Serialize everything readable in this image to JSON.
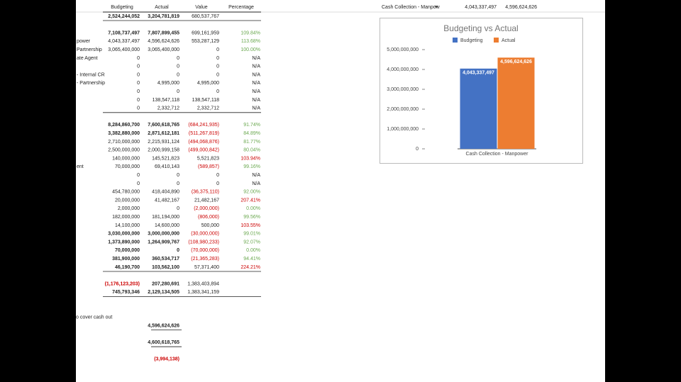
{
  "header": {
    "columns": [
      "Budgeting",
      "Actual",
      "Value",
      "Percentage"
    ]
  },
  "rows": [
    {
      "cells": [
        "2,524,244,052",
        "3,204,781,819",
        "680,537,767",
        null
      ],
      "bold": true
    },
    {
      "cells": [
        "7,108,737,497",
        "7,807,899,455",
        "699,161,959",
        "109.84%"
      ],
      "bold": true,
      "percent_color": "#6aa84f"
    },
    {
      "label": "power",
      "cells": [
        "4,043,337,497",
        "4,596,624,626",
        "553,287,129",
        "113.68%"
      ],
      "percent_color": "#6aa84f"
    },
    {
      "label": "Partnership",
      "cells": [
        "3,065,400,000",
        "3,065,400,000",
        "0",
        "100.00%"
      ],
      "percent_color": "#6aa84f"
    },
    {
      "label": "ate Agent",
      "cells": [
        "0",
        "0",
        "0",
        "N/A"
      ]
    },
    {
      "cells": [
        "0",
        "0",
        "0",
        "N/A"
      ]
    },
    {
      "label": "- Internal CR",
      "cells": [
        "0",
        "0",
        "0",
        "N/A"
      ]
    },
    {
      "label": "- Partnership",
      "cells": [
        "0",
        "4,995,000",
        "4,995,000",
        "N/A"
      ]
    },
    {
      "cells": [
        "0",
        "0",
        "0",
        "N/A"
      ]
    },
    {
      "cells": [
        "0",
        "138,547,118",
        "138,547,118",
        "N/A"
      ]
    },
    {
      "cells": [
        "0",
        "2,332,712",
        "2,332,712",
        "N/A"
      ]
    },
    {
      "cells": [
        "8,284,860,700",
        "7,600,618,765",
        "(684,241,935)",
        "91.74%"
      ],
      "bold": true,
      "percent_color": "#6aa84f"
    },
    {
      "cells": [
        "3,382,880,000",
        "2,871,612,181",
        "(511,267,819)",
        "84.89%"
      ],
      "bold": true,
      "percent_color": "#6aa84f"
    },
    {
      "cells": [
        "2,710,000,000",
        "2,215,931,124",
        "(494,068,876)",
        "81.77%"
      ],
      "percent_color": "#6aa84f"
    },
    {
      "cells": [
        "2,500,000,000",
        "2,000,999,158",
        "(499,000,842)",
        "80.04%"
      ],
      "percent_color": "#6aa84f"
    },
    {
      "cells": [
        "140,000,000",
        "145,521,823",
        "5,521,823",
        "103.94%"
      ],
      "percent_color": "#cc0000"
    },
    {
      "label": "ent",
      "cells": [
        "70,000,000",
        "69,410,143",
        "(589,857)",
        "99.16%"
      ],
      "percent_color": "#6aa84f"
    },
    {
      "cells": [
        "0",
        "0",
        "0",
        "N/A"
      ]
    },
    {
      "cells": [
        "0",
        "0",
        "0",
        "N/A"
      ]
    },
    {
      "cells": [
        "454,780,000",
        "418,404,890",
        "(36,375,110)",
        "92.00%"
      ],
      "percent_color": "#6aa84f"
    },
    {
      "cells": [
        "20,000,000",
        "41,482,167",
        "21,482,167",
        "207.41%"
      ],
      "percent_color": "#cc0000"
    },
    {
      "cells": [
        "2,000,000",
        "0",
        "(2,000,000)",
        "0.00%"
      ],
      "percent_color": "#6aa84f"
    },
    {
      "cells": [
        "182,000,000",
        "181,194,000",
        "(806,000)",
        "99.56%"
      ],
      "percent_color": "#6aa84f"
    },
    {
      "cells": [
        "14,100,000",
        "14,600,000",
        "500,000",
        "103.55%"
      ],
      "percent_color": "#cc0000"
    },
    {
      "cells": [
        "3,030,000,000",
        "3,000,000,000",
        "(30,000,000)",
        "99.01%"
      ],
      "bold": true,
      "percent_color": "#6aa84f"
    },
    {
      "cells": [
        "1,373,890,000",
        "1,264,909,767",
        "(108,980,233)",
        "92.07%"
      ],
      "bold": true,
      "percent_color": "#6aa84f"
    },
    {
      "cells": [
        "70,000,000",
        "0",
        "(70,000,000)",
        "0.00%"
      ],
      "bold": true,
      "percent_color": "#6aa84f"
    },
    {
      "cells": [
        "381,900,000",
        "360,534,717",
        "(21,365,283)",
        "94.41%"
      ],
      "bold": true,
      "percent_color": "#6aa84f"
    },
    {
      "cells": [
        "46,190,700",
        "103,562,100",
        "57,371,400",
        "224.21%"
      ],
      "bold": true,
      "percent_color": "#cc0000"
    },
    {
      "cells": [
        "(1,176,123,203)",
        "207,280,691",
        "1,383,403,894",
        null
      ],
      "bold": true
    },
    {
      "cells": [
        "745,793,346",
        "2,129,134,505",
        "1,383,341,159",
        null
      ],
      "bold": true
    }
  ],
  "notes": {
    "label": "o cover cash out",
    "values": [
      "4,596,624,626",
      "4,600,618,765",
      "(3,994,138)"
    ]
  },
  "top_right": {
    "filter": "Cash Collection - Manpow",
    "values": [
      "4,043,337,497",
      "4,596,624,626"
    ]
  },
  "chart": {
    "type": "bar",
    "title": "Budgeting vs Actual",
    "categories": [
      "Cash Collection - Manpower"
    ],
    "series": [
      {
        "name": "Budgeting",
        "color": "#4472c4",
        "values": [
          4043337497
        ],
        "value_labels": [
          "4,043,337,497"
        ]
      },
      {
        "name": "Actual",
        "color": "#ed7d31",
        "values": [
          4596624626
        ],
        "value_labels": [
          "4,596,624,626"
        ]
      }
    ],
    "ylim": [
      0,
      5000000000
    ],
    "yticks": [
      0,
      {
        "value": 1000000000,
        "label": "1,000,000,000"
      },
      {
        "value": 2000000000,
        "label": "2,000,000,000"
      },
      {
        "value": 3000000000,
        "label": "3,000,000,000"
      },
      {
        "value": 4000000000,
        "label": "4,000,000,000"
      },
      {
        "value": 5000000000,
        "label": "5,000,000,000"
      }
    ],
    "legend": "top"
  }
}
